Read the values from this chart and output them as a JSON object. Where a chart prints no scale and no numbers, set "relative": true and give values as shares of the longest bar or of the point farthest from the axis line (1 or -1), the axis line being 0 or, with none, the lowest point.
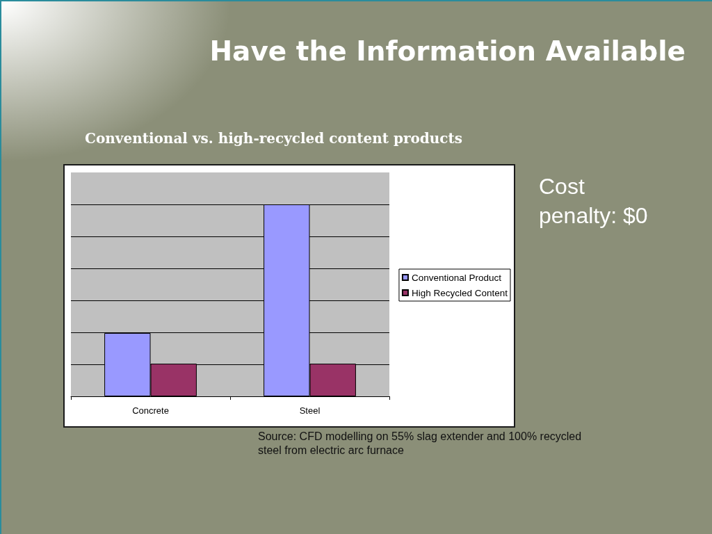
{
  "chart_data": {
    "type": "bar",
    "title": "Have the Information Available",
    "subtitle": "Conventional vs. high-recycled content products",
    "categories": [
      "Concrete",
      "Steel"
    ],
    "series": [
      {
        "name": "Conventional Product",
        "color": "#9999ff",
        "values": [
          0.33,
          1
        ]
      },
      {
        "name": "High Recycled Content",
        "color": "#993366",
        "values": [
          0.17,
          0.17
        ]
      }
    ],
    "relative": true,
    "grid": "y",
    "legend": "right",
    "tick_labels": "x",
    "annotations": [
      "Cost penalty: $0",
      "Source: CFD modelling on 55% slag extender and 100% recycled steel from electric arc furnace"
    ]
  }
}
